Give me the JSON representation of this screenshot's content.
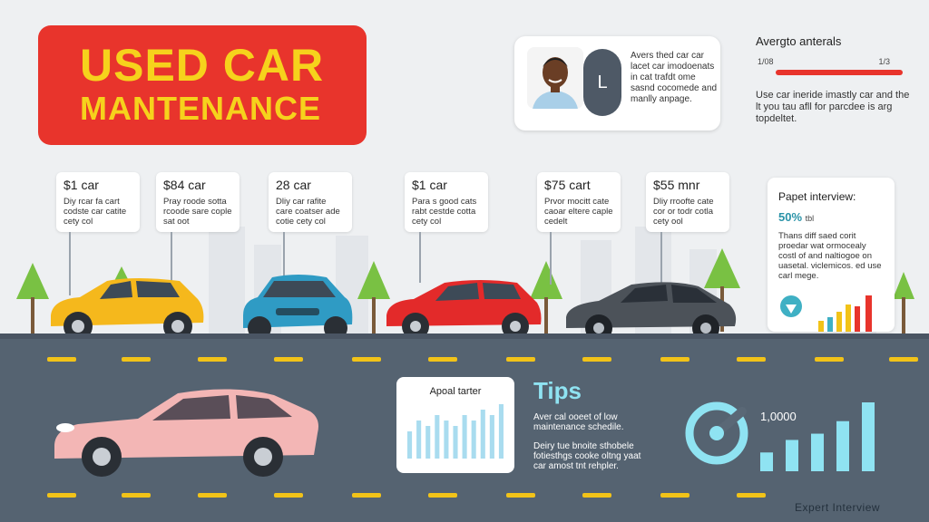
{
  "header": {
    "title_line1": "USED CAR",
    "title_line2": "MANTENANCE"
  },
  "expert": {
    "button_label": "L",
    "text": "Avers thed car car lacet car imodoenats in cat trafdt ome sasnd cocomede and manlly anpage."
  },
  "average": {
    "title": "Avergto anterals",
    "scale_low": "1/08",
    "scale_high": "1/3",
    "text": "Use car ineride imastly car and the lt you tau afll for parcdee is arg topdeltet."
  },
  "price_cards": [
    {
      "price": "$1 car",
      "desc": "Diy rcar fa cart codste car catite cety col"
    },
    {
      "price": "$84 car",
      "desc": "Pray roode sotta rcoode sare cople sat oot"
    },
    {
      "price": "28 car",
      "desc": "Dliy car rafite care coatser ade cotie cety col"
    },
    {
      "price": "$1 car",
      "desc": "Para s good cats rabt cestde cotta cety col"
    },
    {
      "price": "$75 cart",
      "desc": "Prvor mocitt cate caoar eltere caple cedelt"
    },
    {
      "price": "$55 mnr",
      "desc": "Dliy rroofte cate cor or todr cotla cety ool"
    }
  ],
  "interview": {
    "title": "Papet interview:",
    "percent": "50%",
    "percent_note": "tbl",
    "text": "Thans diff saed corit proedar wat ormocealy costl of and naltiogoe on uasetal. viclemicos. ed use carl mege."
  },
  "chart_card": {
    "title": "Apoal tarter",
    "values": [
      5,
      7,
      6,
      8,
      7,
      6,
      8,
      7,
      9,
      8,
      10
    ]
  },
  "tips": {
    "heading": "Tips",
    "item1": "Aver cal ooeet of low maintenance schedile.",
    "item2": "Deiry tue bnoite sthobele fotiesthgs cooke oltng yaat car amost tnt rehpler."
  },
  "stats_widget": {
    "value": "1,0000",
    "values": [
      3,
      5,
      6,
      8,
      11
    ]
  },
  "footer": {
    "link": "Expert Interview"
  },
  "colors": {
    "banner_red": "#e8342c",
    "banner_yellow": "#f6d21c",
    "road": "#556371",
    "lane_yellow": "#f2c318",
    "tips_cyan": "#8fe3f2",
    "chart_blue": "#a9dcef"
  }
}
